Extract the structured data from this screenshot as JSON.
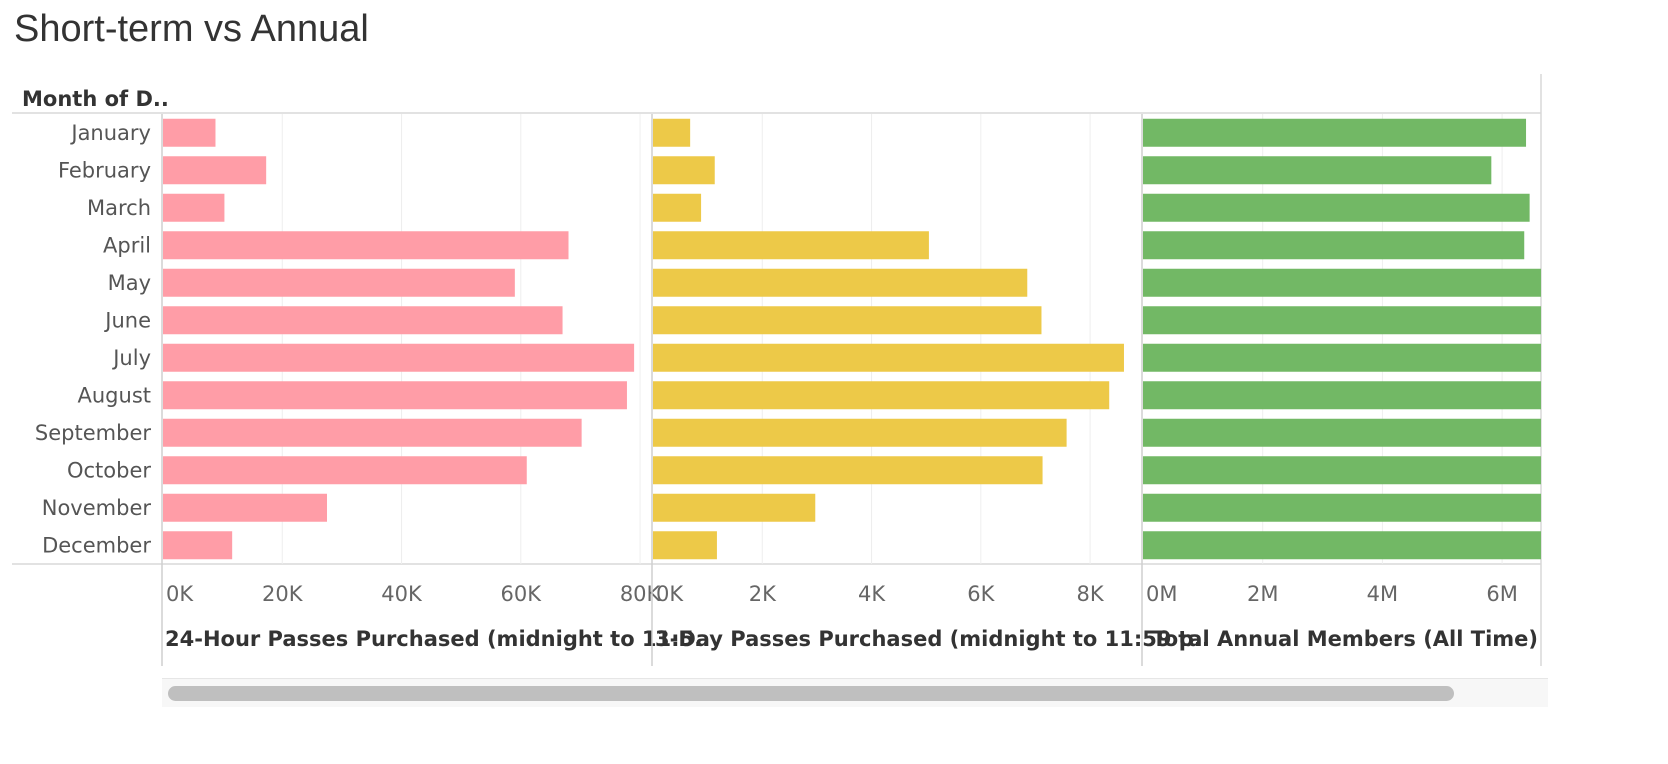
{
  "title": "Short-term vs Annual",
  "colors": {
    "passes24": "#ff9da7",
    "passes3day": "#edc948",
    "annual": "#72b865"
  },
  "chart_data": {
    "type": "bar",
    "orientation": "horizontal",
    "row_header": "Month of D..",
    "categories": [
      "January",
      "February",
      "March",
      "April",
      "May",
      "June",
      "July",
      "August",
      "September",
      "October",
      "November",
      "December"
    ],
    "panels": [
      {
        "name": "24-Hour Passes Purchased (midnight to 11:5..",
        "xlim": [
          0,
          82000
        ],
        "ticks": [
          0,
          20000,
          40000,
          60000,
          80000
        ],
        "tick_labels": [
          "0K",
          "20K",
          "40K",
          "60K",
          "80K"
        ],
        "values": [
          8800,
          17300,
          10300,
          68000,
          59000,
          67000,
          79000,
          77800,
          70200,
          61000,
          27500,
          11600
        ]
      },
      {
        "name": "3-Day Passes Purchased (midnight to 11:59 p..",
        "xlim": [
          0,
          8950
        ],
        "ticks": [
          0,
          2000,
          4000,
          6000,
          8000
        ],
        "tick_labels": [
          "0K",
          "2K",
          "4K",
          "6K",
          "8K"
        ],
        "values": [
          680,
          1130,
          880,
          5050,
          6850,
          7110,
          8620,
          8350,
          7570,
          7130,
          2970,
          1170
        ]
      },
      {
        "name": "Total Annual Members (All Time)",
        "xlim": [
          0,
          6650000
        ],
        "ticks": [
          0,
          2000000,
          4000000,
          6000000
        ],
        "tick_labels": [
          "0M",
          "2M",
          "4M",
          "6M"
        ],
        "values": [
          6400000,
          5820000,
          6460000,
          6370000,
          6650000,
          6650000,
          6650000,
          6650000,
          6650000,
          6650000,
          6650000,
          6650000
        ]
      }
    ],
    "grid": true
  }
}
